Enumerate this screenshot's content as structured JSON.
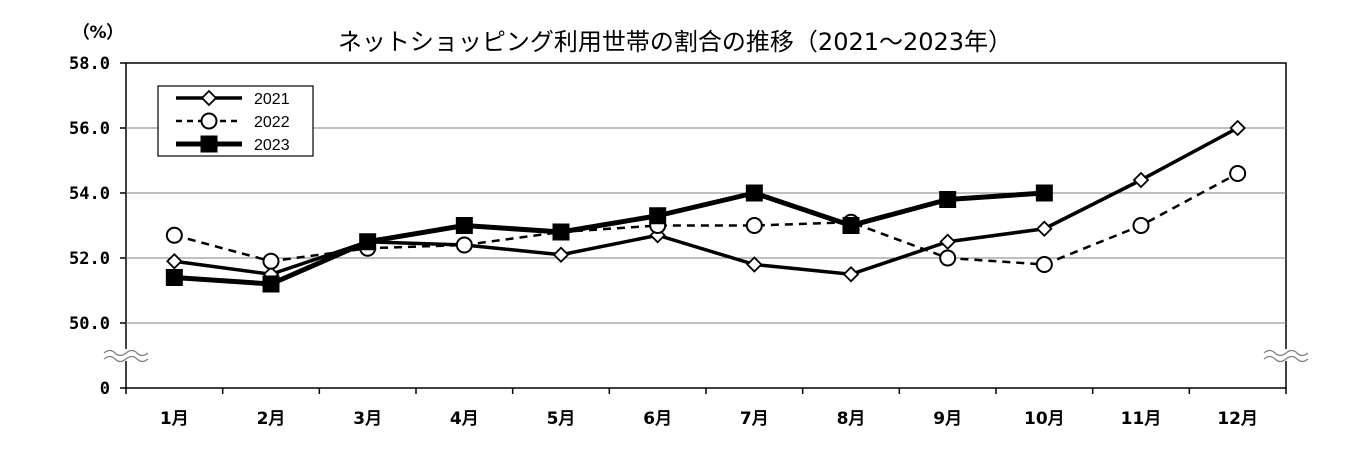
{
  "chart_data": {
    "type": "line",
    "title": "ネットショッピング利用世帯の割合の推移（2021～2023年）",
    "ylabel": "（%）",
    "ylim": [
      50.0,
      58.0
    ],
    "y_ticks": [
      "58.0",
      "56.0",
      "54.0",
      "52.0",
      "50.0",
      "0"
    ],
    "axis_break": true,
    "grid": true,
    "legend_position": "top-left",
    "categories": [
      "1月",
      "2月",
      "3月",
      "4月",
      "5月",
      "6月",
      "7月",
      "8月",
      "9月",
      "10月",
      "11月",
      "12月"
    ],
    "series": [
      {
        "name": "2021",
        "style": "solid",
        "marker": "diamond",
        "color": "#000000",
        "values": [
          51.9,
          51.5,
          52.5,
          52.4,
          52.1,
          52.7,
          51.8,
          51.5,
          52.5,
          52.9,
          54.4,
          56.0
        ]
      },
      {
        "name": "2022",
        "style": "dashed",
        "marker": "circle",
        "color": "#000000",
        "values": [
          52.7,
          51.9,
          52.3,
          52.4,
          52.8,
          53.0,
          53.0,
          53.1,
          52.0,
          51.8,
          53.0,
          54.6
        ]
      },
      {
        "name": "2023",
        "style": "bold",
        "marker": "square",
        "color": "#000000",
        "values": [
          51.4,
          51.2,
          52.5,
          53.0,
          52.8,
          53.3,
          54.0,
          53.0,
          53.8,
          54.0,
          null,
          null
        ]
      }
    ]
  }
}
